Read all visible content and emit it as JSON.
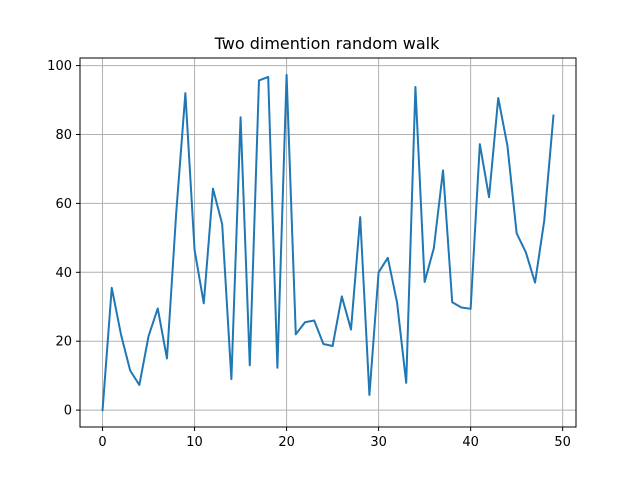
{
  "chart_data": {
    "type": "line",
    "title": "Two dimention random walk",
    "xlabel": "",
    "ylabel": "",
    "xlim": [
      -2.45,
      51.45
    ],
    "ylim": [
      -4.9,
      102.2
    ],
    "grid": true,
    "xticks": [
      0,
      10,
      20,
      30,
      40,
      50
    ],
    "yticks": [
      0,
      20,
      40,
      60,
      80,
      100
    ],
    "series": [
      {
        "color": "#1f77b4",
        "x": [
          0,
          1,
          2,
          3,
          4,
          5,
          6,
          7,
          8,
          9,
          10,
          11,
          12,
          13,
          14,
          15,
          16,
          17,
          18,
          19,
          20,
          21,
          22,
          23,
          24,
          25,
          26,
          27,
          28,
          29,
          30,
          31,
          32,
          33,
          34,
          35,
          36,
          37,
          38,
          39,
          40,
          41,
          42,
          43,
          44,
          45,
          46,
          47,
          48,
          49
        ],
        "y": [
          0,
          35.5,
          22,
          11.5,
          7.3,
          21.5,
          29.5,
          15,
          57,
          92,
          46.5,
          31,
          64.3,
          54,
          9,
          85,
          13,
          95.7,
          96.7,
          12.3,
          97.3,
          22,
          25.5,
          26,
          19.2,
          18.6,
          33,
          23.4,
          56,
          4.4,
          40,
          44.2,
          31.3,
          7.9,
          93.8,
          37.2,
          47,
          69.6,
          31.3,
          29.8,
          29.4,
          77.2,
          61.8,
          90.6,
          76.7,
          51.3,
          45.8,
          37,
          55,
          85.5
        ]
      }
    ]
  }
}
